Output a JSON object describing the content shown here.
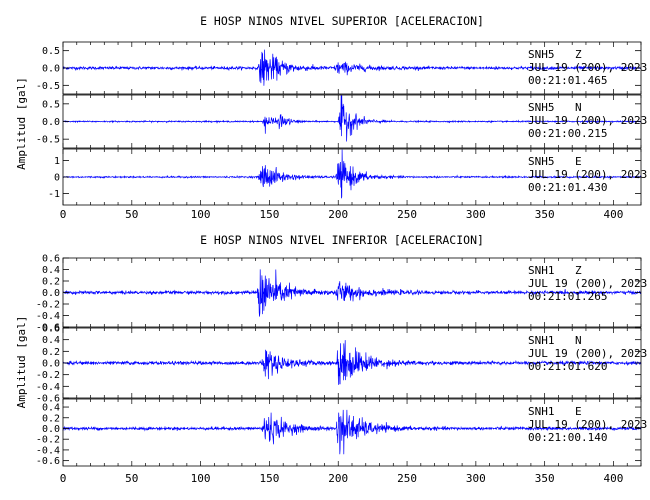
{
  "chart_data": [
    {
      "type": "line",
      "title": "E HOSP NINOS NIVEL SUPERIOR [ACELERACION]",
      "ylabel": "Amplitud [gal]",
      "xlim": [
        0,
        420
      ],
      "x_ticks": [
        0,
        50,
        100,
        150,
        200,
        250,
        300,
        350,
        400
      ],
      "line_color": "#0000ff",
      "panels": [
        {
          "station": "SNH5",
          "component": "Z",
          "date": "JUL 19 (200), 2023",
          "time": "00:21:01.465",
          "ylim": [
            -0.75,
            0.75
          ],
          "y_ticks": [
            0.5,
            0.0,
            -0.5
          ],
          "y_tick_labels": [
            "0.5",
            "0.0",
            "-0.5"
          ],
          "noise": 0.045,
          "events": [
            {
              "t": 144,
              "amp": 0.7,
              "decay": 12,
              "rise": 2
            },
            {
              "t": 200,
              "amp": 0.2,
              "decay": 14,
              "rise": 3
            }
          ]
        },
        {
          "station": "SNH5",
          "component": "N",
          "date": "JUL 19 (200), 2023",
          "time": "00:21:00.215",
          "ylim": [
            -0.75,
            0.75
          ],
          "y_ticks": [
            0.5,
            0.0,
            -0.5
          ],
          "y_tick_labels": [
            "0.5",
            "0.0",
            "-0.5"
          ],
          "noise": 0.02,
          "events": [
            {
              "t": 147,
              "amp": 0.3,
              "decay": 5,
              "rise": 2
            },
            {
              "t": 158,
              "amp": 0.25,
              "decay": 5,
              "rise": 2
            },
            {
              "t": 202,
              "amp": 0.8,
              "decay": 8,
              "rise": 2
            }
          ]
        },
        {
          "station": "SNH5",
          "component": "E",
          "date": "JUL 19 (200), 2023",
          "time": "00:21:01.430",
          "ylim": [
            -1.7,
            1.7
          ],
          "y_ticks": [
            1,
            0,
            -1
          ],
          "y_tick_labels": [
            "1",
            "0",
            "-1"
          ],
          "noise": 0.05,
          "events": [
            {
              "t": 145,
              "amp": 1.1,
              "decay": 11,
              "rise": 3
            },
            {
              "t": 201,
              "amp": 1.5,
              "decay": 10,
              "rise": 3
            }
          ]
        }
      ]
    },
    {
      "type": "line",
      "title": "E HOSP NINOS NIVEL INFERIOR [ACELERACION]",
      "ylabel": "Amplitud [gal]",
      "xlim": [
        0,
        420
      ],
      "x_ticks": [
        0,
        50,
        100,
        150,
        200,
        250,
        300,
        350,
        400
      ],
      "line_color": "#0000ff",
      "panels": [
        {
          "station": "SNH1",
          "component": "Z",
          "date": "JUL 19 (200), 2023",
          "time": "00:21:01.265",
          "ylim": [
            -0.6,
            0.6
          ],
          "y_ticks": [
            0.6,
            0.4,
            0.2,
            0.0,
            -0.2,
            -0.4,
            -0.6
          ],
          "y_tick_labels": [
            "0.6",
            "0.4",
            "0.2",
            "0.0",
            "-0.2",
            "-0.4",
            "-0.6"
          ],
          "noise": 0.03,
          "events": [
            {
              "t": 143,
              "amp": 0.55,
              "decay": 14,
              "rise": 2
            },
            {
              "t": 200,
              "amp": 0.2,
              "decay": 16,
              "rise": 3
            }
          ]
        },
        {
          "station": "SNH1",
          "component": "N",
          "date": "JUL 19 (200), 2023",
          "time": "00:21:01.620",
          "ylim": [
            -0.6,
            0.6
          ],
          "y_ticks": [
            0.6,
            0.4,
            0.2,
            0.0,
            -0.2,
            -0.4,
            -0.6
          ],
          "y_tick_labels": [
            "0.6",
            "0.4",
            "0.2",
            "0.0",
            "-0.2",
            "-0.4",
            "-0.6"
          ],
          "noise": 0.03,
          "events": [
            {
              "t": 147,
              "amp": 0.3,
              "decay": 12,
              "rise": 3
            },
            {
              "t": 201,
              "amp": 0.5,
              "decay": 15,
              "rise": 3
            }
          ]
        },
        {
          "station": "SNH1",
          "component": "E",
          "date": "JUL 19 (200), 2023",
          "time": "00:21:00.140",
          "ylim": [
            -0.7,
            0.55
          ],
          "y_ticks": [
            0.4,
            0.2,
            0.0,
            -0.2,
            -0.4,
            -0.6
          ],
          "y_tick_labels": [
            "0.4",
            "0.2",
            "0.0",
            "-0.2",
            "-0.4",
            "-0.6"
          ],
          "noise": 0.03,
          "events": [
            {
              "t": 147,
              "amp": 0.4,
              "decay": 12,
              "rise": 3
            },
            {
              "t": 201,
              "amp": 0.5,
              "decay": 14,
              "rise": 3
            }
          ]
        }
      ]
    }
  ]
}
